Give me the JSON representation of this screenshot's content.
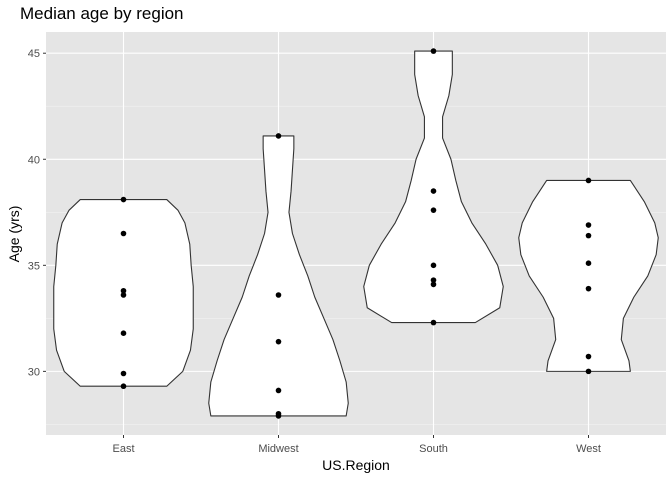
{
  "chart_data": {
    "type": "violin",
    "title": "Median age by region",
    "xlabel": "US.Region",
    "ylabel": "Age (yrs)",
    "ylim": [
      27.0,
      46.0
    ],
    "yticks": [
      30,
      35,
      40,
      45
    ],
    "categories": [
      "East",
      "Midwest",
      "South",
      "West"
    ],
    "points": [
      [
        38.1,
        36.5,
        33.8,
        33.6,
        31.8,
        29.9,
        29.3
      ],
      [
        41.1,
        33.6,
        31.4,
        29.1,
        28.0,
        27.9
      ],
      [
        45.1,
        38.5,
        37.6,
        35.0,
        34.3,
        34.1,
        32.3
      ],
      [
        39.0,
        36.9,
        36.4,
        35.1,
        33.9,
        30.7,
        30.0
      ]
    ],
    "violins": [
      {
        "min": 29.3,
        "max": 38.1,
        "profile": [
          [
            29.3,
            0.62
          ],
          [
            30.0,
            0.85
          ],
          [
            31.0,
            0.96
          ],
          [
            32.0,
            1.0
          ],
          [
            33.0,
            1.0
          ],
          [
            34.0,
            1.0
          ],
          [
            35.0,
            0.97
          ],
          [
            36.0,
            0.95
          ],
          [
            37.0,
            0.88
          ],
          [
            37.6,
            0.78
          ],
          [
            38.1,
            0.62
          ]
        ]
      },
      {
        "min": 27.9,
        "max": 41.1,
        "profile": [
          [
            27.9,
            0.97
          ],
          [
            28.5,
            1.0
          ],
          [
            29.5,
            0.97
          ],
          [
            30.5,
            0.88
          ],
          [
            31.5,
            0.78
          ],
          [
            32.5,
            0.65
          ],
          [
            33.5,
            0.52
          ],
          [
            34.5,
            0.42
          ],
          [
            35.5,
            0.3
          ],
          [
            36.5,
            0.2
          ],
          [
            37.5,
            0.15
          ],
          [
            38.5,
            0.18
          ],
          [
            39.5,
            0.2
          ],
          [
            40.5,
            0.22
          ],
          [
            41.1,
            0.22
          ]
        ]
      },
      {
        "min": 32.3,
        "max": 45.1,
        "profile": [
          [
            32.3,
            0.6
          ],
          [
            33.0,
            0.95
          ],
          [
            34.0,
            1.0
          ],
          [
            35.0,
            0.92
          ],
          [
            36.0,
            0.75
          ],
          [
            37.0,
            0.55
          ],
          [
            38.0,
            0.4
          ],
          [
            39.0,
            0.32
          ],
          [
            40.0,
            0.25
          ],
          [
            41.0,
            0.13
          ],
          [
            42.0,
            0.13
          ],
          [
            43.0,
            0.22
          ],
          [
            44.0,
            0.27
          ],
          [
            45.1,
            0.27
          ]
        ]
      },
      {
        "min": 30.0,
        "max": 39.0,
        "profile": [
          [
            30.0,
            0.6
          ],
          [
            30.5,
            0.58
          ],
          [
            31.5,
            0.47
          ],
          [
            32.5,
            0.5
          ],
          [
            33.5,
            0.65
          ],
          [
            34.5,
            0.85
          ],
          [
            35.5,
            0.97
          ],
          [
            36.3,
            1.0
          ],
          [
            37.0,
            0.95
          ],
          [
            38.0,
            0.8
          ],
          [
            39.0,
            0.6
          ]
        ]
      }
    ]
  }
}
